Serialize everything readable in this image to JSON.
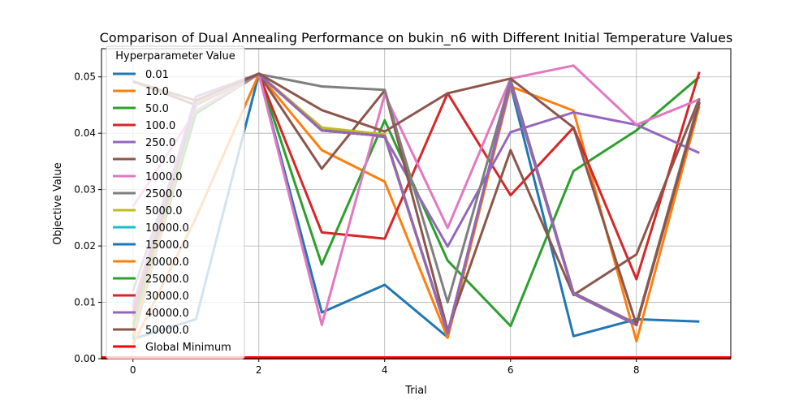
{
  "chart_data": {
    "type": "line",
    "title": "Comparison of Dual Annealing Performance on bukin_n6 with Different Initial Temperature Values",
    "xlabel": "Trial",
    "ylabel": "Objective Value",
    "xlim": [
      -0.5,
      9.5
    ],
    "ylim": [
      0,
      0.055
    ],
    "x_ticks": [
      0,
      2,
      4,
      6,
      8
    ],
    "y_ticks": [
      0.0,
      0.01,
      0.02,
      0.03,
      0.04,
      0.05
    ],
    "y_tick_labels": [
      "0.00",
      "0.01",
      "0.02",
      "0.03",
      "0.04",
      "0.05"
    ],
    "grid": true,
    "legend_title": "Hyperparameter Value",
    "legend_position": "upper-left",
    "x": [
      0,
      1,
      2,
      3,
      4,
      5,
      6,
      7,
      8,
      9
    ],
    "series": [
      {
        "name": "0.01",
        "color": "#1f77b4",
        "values": [
          0.0035,
          0.007,
          0.0505,
          0.0082,
          0.0131,
          0.0038,
          0.0485,
          0.004,
          0.007,
          0.0066
        ]
      },
      {
        "name": "10.0",
        "color": "#ff7f0e",
        "values": [
          0.0025,
          0.025,
          0.0505,
          0.037,
          0.0314,
          0.0037,
          0.0483,
          0.044,
          0.0031,
          0.0448
        ]
      },
      {
        "name": "50.0",
        "color": "#2ca02c",
        "values": [
          0.005,
          0.0435,
          0.0505,
          0.0167,
          0.0423,
          0.0174,
          0.0058,
          0.0333,
          0.0405,
          0.05
        ]
      },
      {
        "name": "100.0",
        "color": "#d62728",
        "values": [
          0.0075,
          0.045,
          0.0505,
          0.0224,
          0.0213,
          0.0471,
          0.029,
          0.041,
          0.0141,
          0.0509
        ]
      },
      {
        "name": "250.0",
        "color": "#9467bd",
        "values": [
          0.009,
          0.0465,
          0.0505,
          0.041,
          0.0393,
          0.0199,
          0.0402,
          0.0437,
          0.0415,
          0.0365
        ]
      },
      {
        "name": "500.0",
        "color": "#8c564b",
        "values": [
          0.0492,
          0.045,
          0.0505,
          0.0337,
          0.0476,
          0.005,
          0.037,
          0.0113,
          0.0185,
          0.0462
        ]
      },
      {
        "name": "1000.0",
        "color": "#e377c2",
        "values": [
          0.027,
          0.044,
          0.0505,
          0.006,
          0.0469,
          0.0232,
          0.0497,
          0.052,
          0.0415,
          0.046
        ]
      },
      {
        "name": "2500.0",
        "color": "#7f7f7f",
        "values": [
          0.012,
          0.045,
          0.0505,
          0.0483,
          0.0477,
          0.01,
          0.0495,
          0.0117,
          0.0062,
          0.046
        ]
      },
      {
        "name": "5000.0",
        "color": "#bcbd22",
        "values": [
          0.004,
          0.0455,
          0.0505,
          0.041,
          0.0398,
          0.0045,
          0.0488,
          0.0115,
          0.006,
          0.0455
        ]
      },
      {
        "name": "10000.0",
        "color": "#17becf",
        "values": [
          0.0035,
          0.0458,
          0.0505,
          0.0405,
          0.0395,
          0.0045,
          0.0489,
          0.0115,
          0.006,
          0.0455
        ]
      },
      {
        "name": "15000.0",
        "color": "#1f77b4",
        "values": [
          0.0035,
          0.0458,
          0.0505,
          0.0405,
          0.0395,
          0.0045,
          0.049,
          0.0115,
          0.006,
          0.0455
        ]
      },
      {
        "name": "20000.0",
        "color": "#ff7f0e",
        "values": [
          0.004,
          0.0458,
          0.0505,
          0.0405,
          0.0395,
          0.0045,
          0.049,
          0.0115,
          0.006,
          0.0455
        ]
      },
      {
        "name": "25000.0",
        "color": "#2ca02c",
        "values": [
          0.006,
          0.0458,
          0.0505,
          0.0405,
          0.0395,
          0.0045,
          0.049,
          0.0115,
          0.006,
          0.0455
        ]
      },
      {
        "name": "30000.0",
        "color": "#d62728",
        "values": [
          0.008,
          0.0458,
          0.0505,
          0.0405,
          0.0395,
          0.0045,
          0.049,
          0.0115,
          0.006,
          0.0455
        ]
      },
      {
        "name": "40000.0",
        "color": "#9467bd",
        "values": [
          0.0095,
          0.0458,
          0.0505,
          0.0405,
          0.0395,
          0.0045,
          0.049,
          0.0115,
          0.006,
          0.0455
        ]
      },
      {
        "name": "50000.0",
        "color": "#8c564b",
        "values": [
          0.0492,
          0.0458,
          0.0506,
          0.0441,
          0.0403,
          0.0471,
          0.0497,
          0.041,
          0.006,
          0.0455
        ]
      }
    ],
    "reference_line": {
      "name": "Global Minimum",
      "color": "#ff0000",
      "value": 0.0
    }
  }
}
